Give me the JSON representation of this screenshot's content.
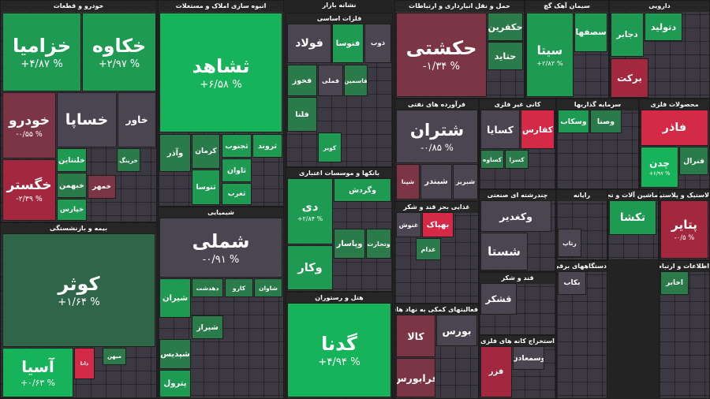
{
  "market_label": "نشانه بازار",
  "sectors": [
    {
      "title": "خودرو و قطعات",
      "tiles": [
        {
          "name": "خزامیا",
          "change": "+۴/۸۷ %"
        },
        {
          "name": "خکاوه",
          "change": "+۲/۹۷ %"
        },
        {
          "name": "خودرو",
          "change": "-۰/۵۵ %"
        },
        {
          "name": "خساپا"
        },
        {
          "name": "خاور"
        },
        {
          "name": "خگستر",
          "change": "-۲/۳۹ %"
        },
        {
          "name": "خلنتاین"
        },
        {
          "name": "خبهمن"
        },
        {
          "name": "خپارس"
        },
        {
          "name": "خمهر"
        },
        {
          "name": "خرینگ"
        }
      ]
    },
    {
      "title": "بیمه و بازنشستگی",
      "tiles": [
        {
          "name": "کوثر",
          "change": "+۱/۶۴ %"
        },
        {
          "name": "آسیا",
          "change": "+۰/۶۳ %"
        },
        {
          "name": "دانا"
        },
        {
          "name": "میهن"
        }
      ]
    },
    {
      "title": "انبوه سازی املاک و مستغلات",
      "tiles": [
        {
          "name": "ثشاهد",
          "change": "+۶/۵۸ %"
        },
        {
          "name": "کرمان"
        },
        {
          "name": "ثجنوب"
        },
        {
          "name": "ثروند"
        },
        {
          "name": "وآذر"
        },
        {
          "name": "ثتوسا"
        },
        {
          "name": "ثاوان"
        },
        {
          "name": "ثغرب"
        }
      ]
    },
    {
      "title": "شیمیایی",
      "tiles": [
        {
          "name": "شملی",
          "change": "-۰/۹۱ %"
        },
        {
          "name": "شیران"
        },
        {
          "name": "دهدشت"
        },
        {
          "name": "کارو"
        },
        {
          "name": "شاوان"
        },
        {
          "name": "شپدیس"
        },
        {
          "name": "پترول"
        },
        {
          "name": "شیراز"
        }
      ]
    },
    {
      "title": "فلزات اساسی",
      "tiles": [
        {
          "name": "فولاد"
        },
        {
          "name": "فنوسا"
        },
        {
          "name": "ذوب"
        },
        {
          "name": "فخوز"
        },
        {
          "name": "فملی"
        },
        {
          "name": "فاسمین"
        },
        {
          "name": "فلنا"
        },
        {
          "name": "کویر"
        }
      ]
    },
    {
      "title": "بانکها و موسسات اعتباری",
      "tiles": [
        {
          "name": "دی",
          "change": "+۲/۸۴ %"
        },
        {
          "name": "وکار"
        },
        {
          "name": "وگردش"
        },
        {
          "name": "وپاسار"
        },
        {
          "name": "وتجارت"
        }
      ]
    },
    {
      "title": "هتل و رستوران",
      "tiles": [
        {
          "name": "گدنا",
          "change": "+۴/۹۴ %"
        }
      ]
    },
    {
      "title": "حمل و نقل انبارداری و ارتباطات",
      "tiles": [
        {
          "name": "حکشتی",
          "change": "-۱/۳۴ %"
        },
        {
          "name": "حکفرین"
        },
        {
          "name": "حتاید"
        }
      ]
    },
    {
      "title": "سیمان آهک گچ",
      "tiles": [
        {
          "name": "سیتا",
          "change": "+۲/۸۲ %"
        },
        {
          "name": "سصفها"
        }
      ]
    },
    {
      "title": "دارویی",
      "tiles": [
        {
          "name": "دجابر"
        },
        {
          "name": "دتولید"
        },
        {
          "name": "برکت"
        }
      ]
    },
    {
      "title": "فرآورده های نفتی",
      "tiles": [
        {
          "name": "شتران",
          "change": "-۰/۸۵ %"
        },
        {
          "name": "شپنا"
        },
        {
          "name": "شبندر"
        },
        {
          "name": "شبریز"
        }
      ]
    },
    {
      "title": "کانی غیر فلزی",
      "tiles": [
        {
          "name": "کسایا"
        },
        {
          "name": "کفارس"
        },
        {
          "name": "کساوه"
        },
        {
          "name": "کسرا"
        }
      ]
    },
    {
      "title": "سرمایه گذاریها",
      "tiles": [
        {
          "name": "وسکاب"
        },
        {
          "name": "وصنا"
        }
      ]
    },
    {
      "title": "محصولات فلزی",
      "tiles": [
        {
          "name": "فاذر"
        },
        {
          "name": "چدن",
          "change": "+۶/۹۷ %"
        },
        {
          "name": "فنرال"
        }
      ]
    },
    {
      "title": "غذایی بجز قند و شکر",
      "tiles": [
        {
          "name": "غنوش"
        },
        {
          "name": "بهپاک"
        },
        {
          "name": "غدام"
        }
      ]
    },
    {
      "title": "چندرشته ای صنعتی",
      "tiles": [
        {
          "name": "وکغدیر"
        },
        {
          "name": "شستا"
        }
      ]
    },
    {
      "title": "رایانه",
      "tiles": [
        {
          "name": "رتاپ"
        }
      ]
    },
    {
      "title": "ماشین آلات و تجهیزات",
      "tiles": [
        {
          "name": "تکشا"
        }
      ]
    },
    {
      "title": "لاستیک و پلاستیک",
      "tiles": [
        {
          "name": "پتایر",
          "change": "-۰/۵ %"
        }
      ]
    },
    {
      "title": "فعالیتهای کمکی به نهاد های مالی",
      "tiles": [
        {
          "name": "کالا"
        },
        {
          "name": "بورس"
        },
        {
          "name": "فرابورس"
        }
      ]
    },
    {
      "title": "قند و شکر",
      "tiles": [
        {
          "name": "قشکر"
        }
      ]
    },
    {
      "title": "استخراج کانه های فلزی",
      "tiles": [
        {
          "name": "فزر"
        },
        {
          "name": "وسمعادن"
        }
      ]
    },
    {
      "title": "دستگاههای برقی",
      "tiles": [
        {
          "name": "بکاب"
        }
      ]
    },
    {
      "title": "اطلاعات و ارتباطات",
      "tiles": [
        {
          "name": "اخابر"
        }
      ]
    }
  ]
}
